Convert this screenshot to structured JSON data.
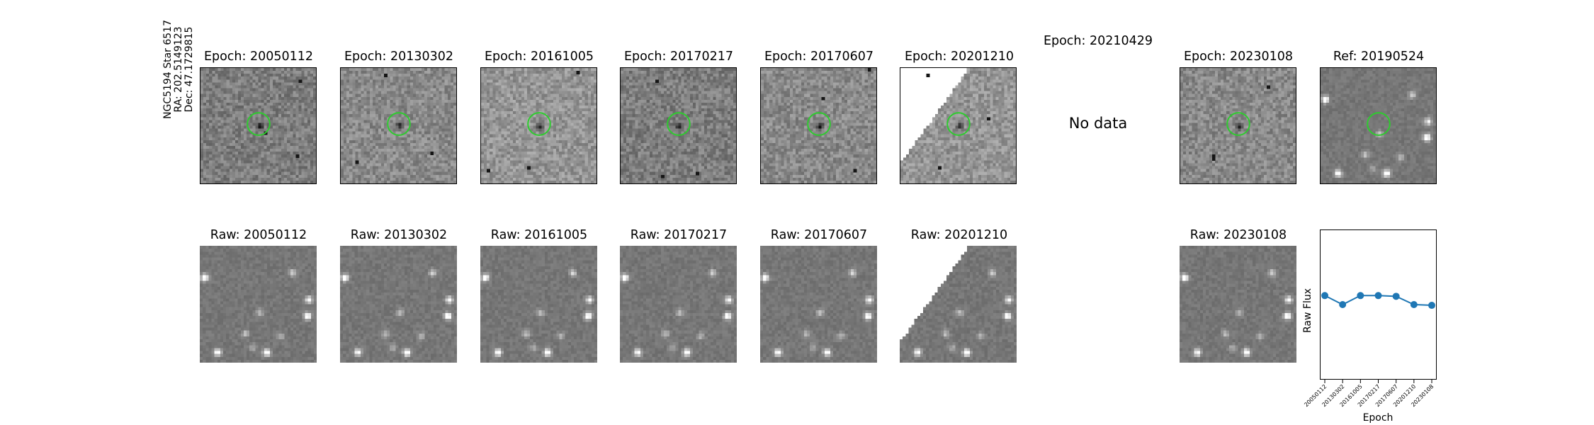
{
  "side_label": {
    "line1": "NGC5194 Star 6517",
    "line2": "RA: 202.5149123",
    "line3": "Dec: 47.1729815"
  },
  "top_row": [
    {
      "title": "Epoch: 20050112",
      "has_data": true
    },
    {
      "title": "Epoch: 20130302",
      "has_data": true
    },
    {
      "title": "Epoch: 20161005",
      "has_data": true
    },
    {
      "title": "Epoch: 20170217",
      "has_data": true
    },
    {
      "title": "Epoch: 20170607",
      "has_data": true
    },
    {
      "title": "Epoch: 20201210",
      "has_data": true
    },
    {
      "title": "Epoch: 20210429",
      "has_data": false,
      "no_data_text": "No data"
    },
    {
      "title": "Epoch: 20230108",
      "has_data": true
    },
    {
      "title": "Ref: 20190524",
      "has_data": true
    }
  ],
  "bottom_row": [
    {
      "title": "Raw: 20050112"
    },
    {
      "title": "Raw: 20130302"
    },
    {
      "title": "Raw: 20161005"
    },
    {
      "title": "Raw: 20170217"
    },
    {
      "title": "Raw: 20170607"
    },
    {
      "title": "Raw: 20201210"
    },
    {
      "title": "Raw: 20230108"
    }
  ],
  "colors": {
    "circle": "#2ecc2e",
    "series": "#1f77b4"
  },
  "chart_data": {
    "type": "line",
    "title": "",
    "xlabel": "Epoch",
    "ylabel": "Raw Flux",
    "categories": [
      "20050112",
      "20130302",
      "20161005",
      "20170217",
      "20170607",
      "20201210",
      "20230108"
    ],
    "series": [
      {
        "values": [
          0.56,
          0.5,
          0.56,
          0.56,
          0.555,
          0.5,
          0.495
        ]
      }
    ],
    "ylim": [
      0,
      1
    ],
    "grid": false
  }
}
